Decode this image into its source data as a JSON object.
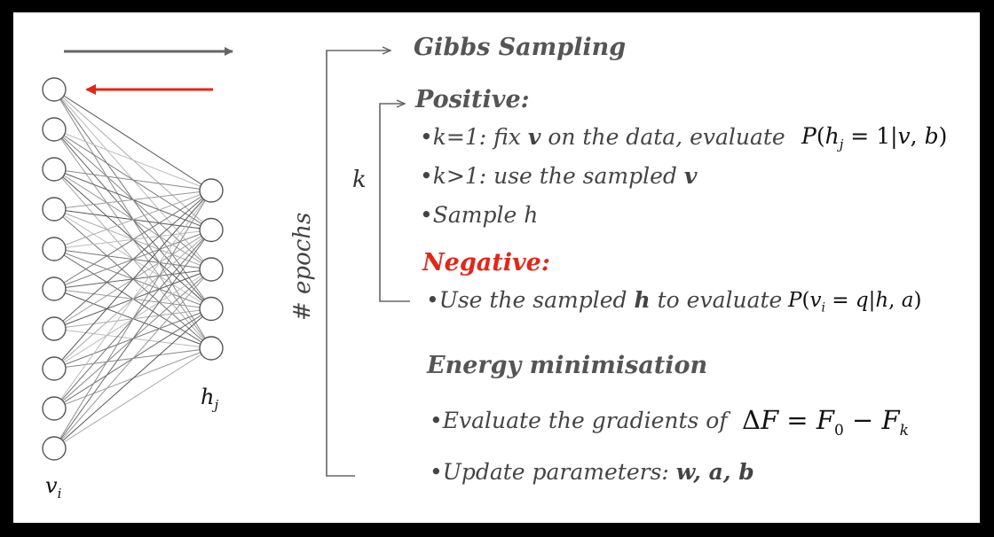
{
  "network": {
    "visible_count": 10,
    "hidden_count": 5,
    "visible_label": "v",
    "visible_sub": "i",
    "hidden_label": "h",
    "hidden_sub": "j",
    "forward_arrow_color": "#666666",
    "backward_arrow_color": "#e0281a"
  },
  "labels": {
    "epochs": "# epochs",
    "k": "k"
  },
  "gibbs": {
    "title": "Gibbs Sampling"
  },
  "positive": {
    "title": "Positive:",
    "k1_prefix": "k=1: fix ",
    "k1_bold": "v",
    "k1_suffix": " on the data, evaluate",
    "k1_math": "P(h_j = 1|v, b)",
    "kgt1_prefix": "k>1: use the sampled ",
    "kgt1_bold": "v",
    "sample": "Sample h"
  },
  "negative": {
    "title": "Negative:",
    "item_prefix": "Use the sampled ",
    "item_bold": "h",
    "item_suffix": " to evaluate",
    "item_math": "P(v_i = q|h, a)"
  },
  "energy": {
    "title": "Energy minimisation",
    "gradients": "Evaluate the gradients of",
    "gradients_math": "ΔF = F_0 − F_k",
    "update_prefix": "Update parameters: ",
    "update_params": "w, a, b"
  }
}
